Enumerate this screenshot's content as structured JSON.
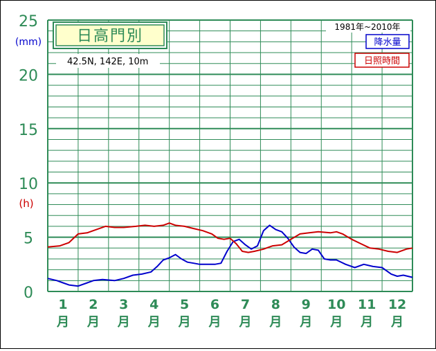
{
  "chart_data": {
    "type": "line",
    "station_name": "日高門別",
    "location": "42.5N,  142E,  10m",
    "period": "1981年~2010年",
    "legend": [
      "降水量",
      "日照時間"
    ],
    "left_unit_top": "(mm)",
    "left_unit_bottom": "(h)",
    "y_ticks": [
      "0",
      "5",
      "10",
      "15",
      "20",
      "25"
    ],
    "ylim": [
      0,
      25
    ],
    "categories": [
      {
        "num": "1",
        "unit": "月"
      },
      {
        "num": "2",
        "unit": "月"
      },
      {
        "num": "3",
        "unit": "月"
      },
      {
        "num": "4",
        "unit": "月"
      },
      {
        "num": "5",
        "unit": "月"
      },
      {
        "num": "6",
        "unit": "月"
      },
      {
        "num": "7",
        "unit": "月"
      },
      {
        "num": "8",
        "unit": "月"
      },
      {
        "num": "9",
        "unit": "月"
      },
      {
        "num": "10",
        "unit": "月"
      },
      {
        "num": "11",
        "unit": "月"
      },
      {
        "num": "12",
        "unit": "月"
      }
    ],
    "xlim": [
      0.5,
      12.5
    ],
    "colors": {
      "precipitation": "#0000cc",
      "sunshine": "#cc0000",
      "grid": "#2e8b57",
      "axis_text": "#2e8b57"
    },
    "series": [
      {
        "name": "降水量",
        "x": [
          0.5,
          0.8,
          1.0,
          1.2,
          1.5,
          1.8,
          2.0,
          2.3,
          2.7,
          3.0,
          3.3,
          3.6,
          3.9,
          4.1,
          4.3,
          4.5,
          4.7,
          4.9,
          5.1,
          5.3,
          5.5,
          5.7,
          6.0,
          6.2,
          6.4,
          6.6,
          6.8,
          7.0,
          7.2,
          7.4,
          7.6,
          7.8,
          8.0,
          8.2,
          8.4,
          8.6,
          8.8,
          9.0,
          9.2,
          9.4,
          9.6,
          9.8,
          10.0,
          10.3,
          10.6,
          10.9,
          11.2,
          11.5,
          11.8,
          12.0,
          12.2,
          12.5
        ],
        "values": [
          1.2,
          1.0,
          0.8,
          0.6,
          0.5,
          0.8,
          1.0,
          1.1,
          1.0,
          1.2,
          1.5,
          1.6,
          1.8,
          2.3,
          2.9,
          3.1,
          3.4,
          3.0,
          2.7,
          2.6,
          2.5,
          2.5,
          2.5,
          2.6,
          3.7,
          4.6,
          4.8,
          4.3,
          3.9,
          4.2,
          5.6,
          6.1,
          5.7,
          5.5,
          4.9,
          4.1,
          3.6,
          3.5,
          3.9,
          3.8,
          3.0,
          2.9,
          2.9,
          2.5,
          2.2,
          2.5,
          2.3,
          2.2,
          1.6,
          1.4,
          1.5,
          1.3
        ]
      },
      {
        "name": "日照時間",
        "x": [
          0.5,
          0.9,
          1.2,
          1.5,
          1.8,
          2.1,
          2.4,
          2.7,
          3.0,
          3.4,
          3.7,
          4.0,
          4.3,
          4.5,
          4.7,
          5.0,
          5.3,
          5.6,
          5.9,
          6.1,
          6.3,
          6.5,
          6.7,
          6.9,
          7.1,
          7.3,
          7.6,
          7.9,
          8.2,
          8.5,
          8.8,
          9.1,
          9.4,
          9.8,
          10.0,
          10.2,
          10.5,
          10.8,
          11.1,
          11.4,
          11.7,
          12.0,
          12.3,
          12.5
        ],
        "values": [
          4.1,
          4.2,
          4.5,
          5.3,
          5.4,
          5.7,
          6.0,
          5.9,
          5.9,
          6.0,
          6.1,
          6.0,
          6.1,
          6.3,
          6.1,
          6.0,
          5.8,
          5.6,
          5.3,
          4.9,
          4.8,
          4.9,
          4.4,
          3.7,
          3.6,
          3.7,
          3.9,
          4.2,
          4.3,
          4.8,
          5.3,
          5.4,
          5.5,
          5.4,
          5.5,
          5.3,
          4.8,
          4.4,
          4.0,
          3.9,
          3.7,
          3.6,
          3.9,
          4.0
        ]
      }
    ]
  }
}
